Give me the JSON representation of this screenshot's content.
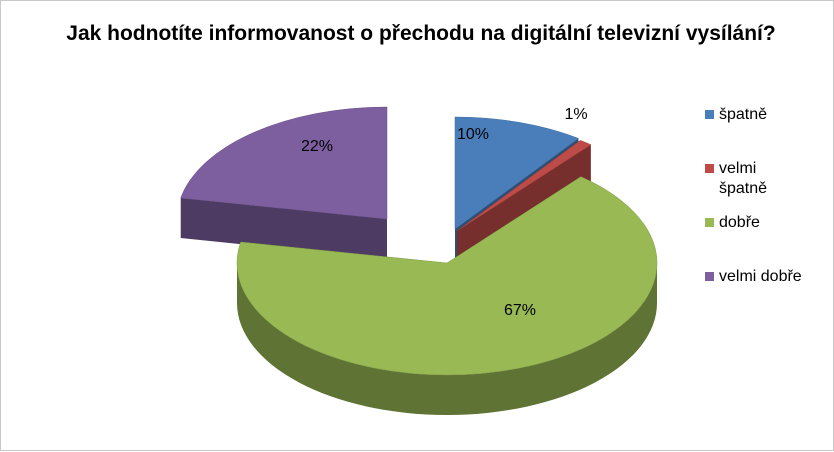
{
  "chart_data": {
    "type": "pie",
    "title": "Jak hodnotíte informovanost o přechodu na digitální televizní vysílání?",
    "categories": [
      "špatně",
      "velmi špatně",
      "dobře",
      "velmi dobře"
    ],
    "values": [
      10,
      1,
      67,
      22
    ],
    "data_labels": [
      "10%",
      "1%",
      "67%",
      "22%"
    ],
    "colors": [
      "#4a7ebb",
      "#be4b48",
      "#98b954",
      "#7d5fa0"
    ],
    "legend": "right",
    "style": "3d-exploded"
  }
}
